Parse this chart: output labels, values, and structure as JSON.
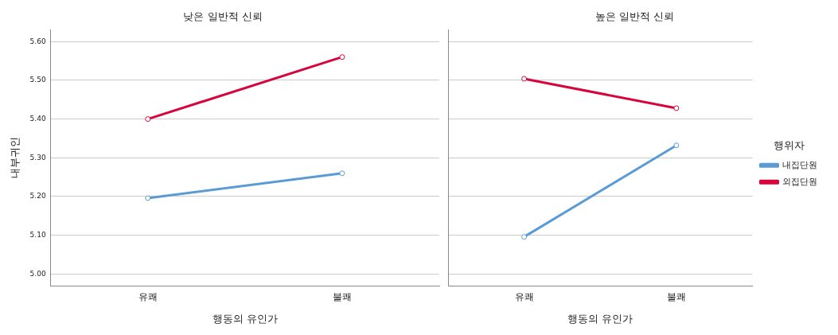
{
  "chart_data": [
    {
      "type": "line",
      "title": "낮은 일반적 신뢰",
      "xlabel": "행동의 유인가",
      "ylabel": "내부귀인",
      "categories": [
        "유쾌",
        "불쾌"
      ],
      "ylim": [
        4.97,
        5.63
      ],
      "yticks": [
        {
          "value": 5.0,
          "label": "5.00"
        },
        {
          "value": 5.1,
          "label": "5.10"
        },
        {
          "value": 5.2,
          "label": "5.20"
        },
        {
          "value": 5.3,
          "label": "5.30"
        },
        {
          "value": 5.4,
          "label": "5.40"
        },
        {
          "value": 5.5,
          "label": "5.50"
        },
        {
          "value": 5.6,
          "label": "5.60"
        }
      ],
      "grid": "y",
      "marker": "circle",
      "line_style": "solid",
      "series": [
        {
          "color": "#5b9bd5",
          "values": [
            5.196,
            5.26
          ]
        },
        {
          "color": "#d6063c",
          "values": [
            5.4,
            5.56
          ]
        }
      ]
    },
    {
      "type": "line",
      "title": "높은 일반적 신뢰",
      "xlabel": "행동의 유인가",
      "categories": [
        "유쾌",
        "불쾌"
      ],
      "ylim": [
        4.97,
        5.63
      ],
      "yticks": [
        {
          "value": 5.0,
          "label": null
        },
        {
          "value": 5.1,
          "label": null
        },
        {
          "value": 5.2,
          "label": null
        },
        {
          "value": 5.3,
          "label": null
        },
        {
          "value": 5.4,
          "label": null
        },
        {
          "value": 5.5,
          "label": null
        },
        {
          "value": 5.6,
          "label": null
        }
      ],
      "tick_labels": "x",
      "grid": "y",
      "marker": "circle",
      "line_style": "solid",
      "legend": "right",
      "legend_title": "행위자",
      "series": [
        {
          "name": "내집단원",
          "color": "#5b9bd5",
          "values": [
            5.096,
            5.332
          ]
        },
        {
          "name": "외집단원",
          "color": "#d6063c",
          "values": [
            5.504,
            5.428
          ]
        }
      ]
    }
  ]
}
